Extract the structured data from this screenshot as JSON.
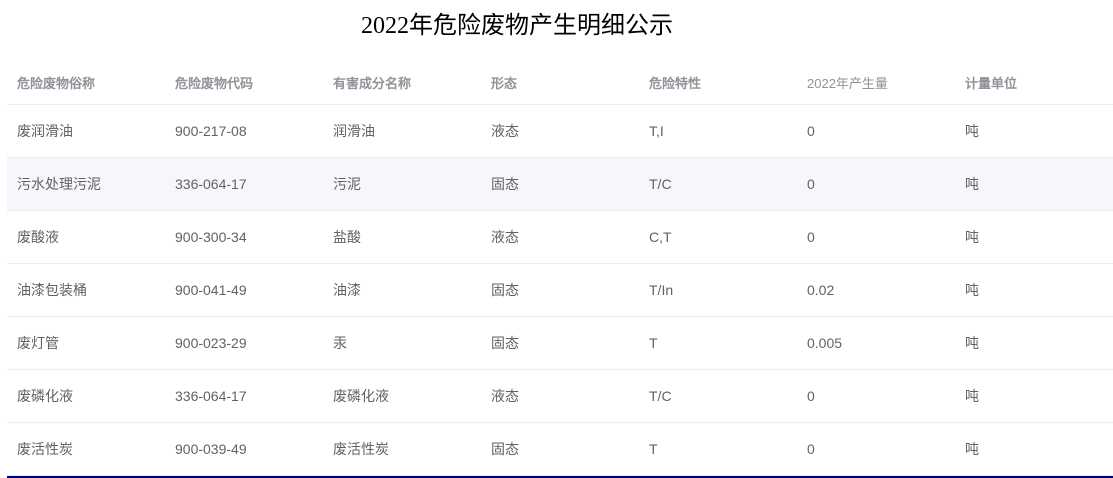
{
  "title": "2022年危险废物产生明细公示",
  "table": {
    "headers": [
      "危险废物俗称",
      "危险废物代码",
      "有害成分名称",
      "形态",
      "危险特性",
      "2022年产生量",
      "计量单位"
    ],
    "rows": [
      [
        "废润滑油",
        "900-217-08",
        "润滑油",
        "液态",
        "T,I",
        "0",
        "吨"
      ],
      [
        "污水处理污泥",
        "336-064-17",
        "污泥",
        "固态",
        "T/C",
        "0",
        "吨"
      ],
      [
        "废酸液",
        "900-300-34",
        "盐酸",
        "液态",
        "C,T",
        "0",
        "吨"
      ],
      [
        "油漆包装桶",
        "900-041-49",
        "油漆",
        "固态",
        "T/In",
        "0.02",
        "吨"
      ],
      [
        "废灯管",
        "900-023-29",
        "汞",
        "固态",
        "T",
        "0.005",
        "吨"
      ],
      [
        "废磷化液",
        "336-064-17",
        "废磷化液",
        "液态",
        "T/C",
        "0",
        "吨"
      ],
      [
        "废活性炭",
        "900-039-49",
        "废活性炭",
        "固态",
        "T",
        "0",
        "吨"
      ]
    ],
    "highlighted_row": 1
  }
}
